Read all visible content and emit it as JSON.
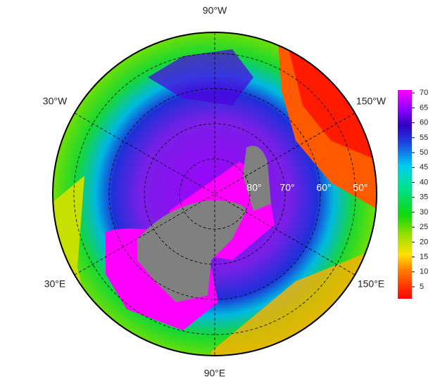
{
  "map": {
    "longitude_labels": {
      "top": "90°W",
      "upper_left": "30°W",
      "upper_right": "150°W",
      "lower_left": "30°E",
      "lower_right": "150°E",
      "bottom": "90°E"
    },
    "latitude_labels": [
      "80°",
      "70°",
      "60°",
      "50°"
    ],
    "colorbar": {
      "lim": [
        1,
        71
      ],
      "ticks": [
        5,
        10,
        15,
        20,
        25,
        30,
        35,
        40,
        45,
        50,
        55,
        60,
        65,
        70
      ]
    }
  }
}
